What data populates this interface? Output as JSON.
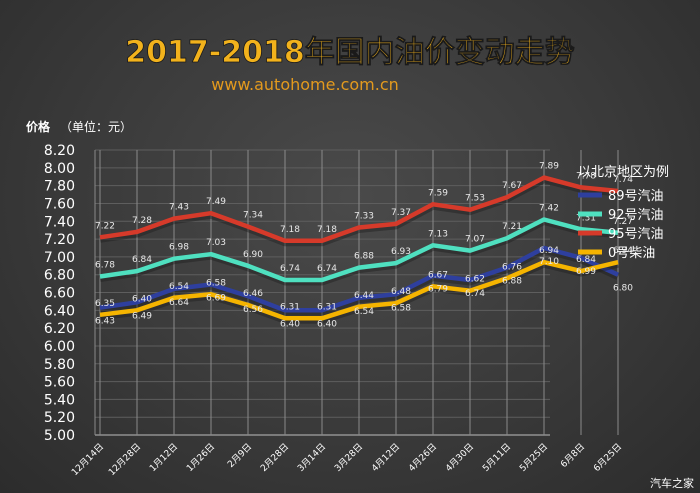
{
  "watermark": "汽车之家",
  "chart_data": {
    "type": "line",
    "title": "2017-2018年国内油价变动走势",
    "subtitle": "www.autohome.com.cn",
    "ylabel": "价格",
    "ylabel_unit": "（单位：元）",
    "xlabel": "",
    "ylim": [
      5.0,
      8.2
    ],
    "ystep": 0.2,
    "grid": true,
    "legend_title": "以北京地区为例",
    "legend_position": "right",
    "categories": [
      "12月14日",
      "12月28日",
      "1月12日",
      "1月26日",
      "2月9日",
      "2月28日",
      "3月14日",
      "3月28日",
      "4月12日",
      "4月26日",
      "4月30日",
      "5月11日",
      "5月25日",
      "6月8日",
      "6月25日"
    ],
    "series": [
      {
        "name": "89号汽油",
        "color": "#2e3f9e",
        "label_pos": "below",
        "values": [
          6.43,
          6.49,
          6.64,
          6.69,
          6.56,
          6.4,
          6.4,
          6.54,
          6.58,
          6.79,
          6.74,
          6.88,
          7.1,
          6.99,
          6.8
        ]
      },
      {
        "name": "92号汽油",
        "color": "#4fe0c0",
        "label_pos": "above",
        "values": [
          6.78,
          6.84,
          6.98,
          7.03,
          6.9,
          6.74,
          6.74,
          6.88,
          6.93,
          7.13,
          7.07,
          7.21,
          7.42,
          7.31,
          7.27
        ]
      },
      {
        "name": "95号汽油",
        "color": "#d63a2a",
        "label_pos": "above",
        "values": [
          7.22,
          7.28,
          7.43,
          7.49,
          7.34,
          7.18,
          7.18,
          7.33,
          7.37,
          7.59,
          7.53,
          7.67,
          7.89,
          7.78,
          7.74
        ]
      },
      {
        "name": "0号柴油",
        "color": "#f5b400",
        "label_pos": "above",
        "values": [
          6.35,
          6.4,
          6.54,
          6.58,
          6.46,
          6.31,
          6.31,
          6.44,
          6.48,
          6.67,
          6.62,
          6.76,
          6.94,
          6.84,
          6.94
        ]
      }
    ]
  }
}
